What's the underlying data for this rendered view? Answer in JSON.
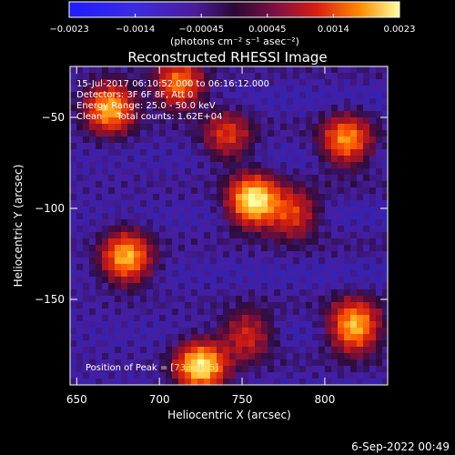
{
  "colorbar": {
    "tick_labels": [
      "−0.0023",
      "−0.0014",
      "−0.00045",
      "0.00045",
      "0.0014",
      "0.0023"
    ],
    "units": "(photons cm⁻² s⁻¹ asec⁻²)",
    "range": [
      -0.0023,
      0.0023
    ]
  },
  "chart_data": {
    "type": "heatmap",
    "title": "Reconstructed RHESSI Image",
    "xlabel": "Heliocentric X (arcsec)",
    "ylabel": "Heliocentric Y (arcsec)",
    "xlim": [
      646,
      838
    ],
    "ylim": [
      -197,
      -22
    ],
    "xticks": [
      "650",
      "700",
      "750",
      "800"
    ],
    "xtick_values": [
      650,
      700,
      750,
      800
    ],
    "yticks": [
      "−50",
      "−100",
      "−150"
    ],
    "ytick_values": [
      -50,
      -100,
      -150
    ],
    "annotations": [
      "15-Jul-2017 06:10:52.000 to 06:16:12.000",
      "Detectors: 3F 6F 8F, Att 0",
      "Energy Range: 25.0 - 50.0 keV",
      "Clean     Total counts: 1.62E+04"
    ],
    "peak_label": "Position of Peak = [",
    "peak_value": "733,-175",
    "peak_suffix": "]",
    "sources": [
      {
        "x": 757,
        "y": -96,
        "value": 1.0
      },
      {
        "x": 725,
        "y": -187,
        "value": 0.95
      },
      {
        "x": 818,
        "y": -165,
        "value": 0.85
      },
      {
        "x": 680,
        "y": -127,
        "value": 0.8
      },
      {
        "x": 670,
        "y": -45,
        "value": 0.8
      },
      {
        "x": 712,
        "y": -32,
        "value": 0.65
      },
      {
        "x": 813,
        "y": -63,
        "value": 0.7
      },
      {
        "x": 741,
        "y": -60,
        "value": 0.45
      },
      {
        "x": 781,
        "y": -103,
        "value": 0.5
      },
      {
        "x": 753,
        "y": -170,
        "value": 0.45
      }
    ]
  },
  "footer": {
    "timestamp": "6-Sep-2022 00:49"
  }
}
